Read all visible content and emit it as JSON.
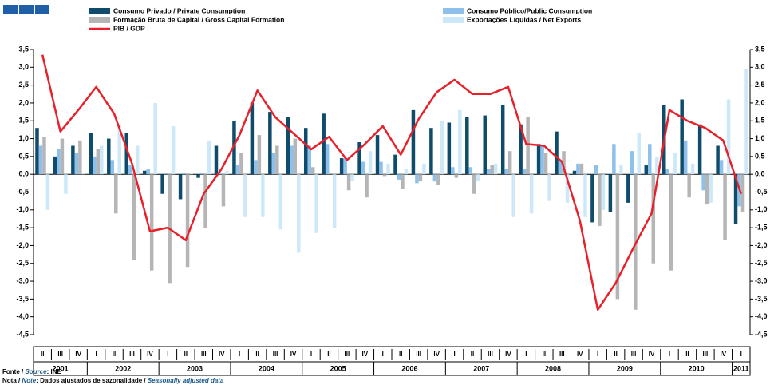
{
  "chart_data": {
    "type": "bar",
    "categories": [
      "II",
      "III",
      "IV",
      "I",
      "II",
      "III",
      "IV",
      "I",
      "II",
      "III",
      "IV",
      "I",
      "II",
      "III",
      "IV",
      "I",
      "II",
      "III",
      "IV",
      "I",
      "II",
      "III",
      "IV",
      "I",
      "II",
      "III",
      "IV",
      "I",
      "II",
      "III",
      "IV",
      "I",
      "II",
      "III",
      "IV",
      "I",
      "II",
      "III",
      "IV",
      "I"
    ],
    "years": [
      "2001",
      "2002",
      "2003",
      "2004",
      "2005",
      "2006",
      "2007",
      "2008",
      "2009",
      "2010",
      "2011"
    ],
    "series": [
      {
        "name": "Consumo Privado / Private Consumption",
        "color": "#0f4c6c",
        "type": "bar",
        "values": [
          1.3,
          0.5,
          0.8,
          1.15,
          1.0,
          1.15,
          0.1,
          -0.55,
          -0.7,
          -0.1,
          0.8,
          1.5,
          2.0,
          1.75,
          1.6,
          1.3,
          1.7,
          0.45,
          0.9,
          1.1,
          0.55,
          1.8,
          1.3,
          1.45,
          1.6,
          1.65,
          1.95,
          1.4,
          0.85,
          1.2,
          0.1,
          -1.35,
          -1.05,
          -0.8,
          0.25,
          1.95,
          2.1,
          1.4,
          0.8,
          -1.4
        ]
      },
      {
        "name": "Consumo Público/Public Consumption",
        "color": "#8dc0ea",
        "type": "bar",
        "values": [
          0.8,
          0.7,
          0.6,
          0.5,
          0.4,
          0.25,
          0.15,
          0.05,
          0.05,
          0.05,
          0.05,
          0.25,
          0.4,
          0.6,
          0.8,
          0.8,
          0.85,
          0.45,
          0.35,
          0.35,
          -0.15,
          -0.25,
          -0.2,
          0.2,
          0.2,
          0.15,
          0.15,
          0.15,
          0.8,
          0.4,
          0.3,
          0.25,
          0.85,
          0.65,
          0.85,
          0.15,
          0.95,
          -0.45,
          0.4,
          -0.9
        ]
      },
      {
        "name": "Formação Bruta de Capital / Gross Capital Formation",
        "color": "#b5b5b5",
        "type": "bar",
        "values": [
          1.05,
          1.0,
          0.95,
          0.7,
          -1.1,
          -2.4,
          -2.7,
          -3.05,
          -2.6,
          -1.5,
          -0.9,
          0.6,
          1.1,
          0.8,
          1.0,
          0.2,
          0.05,
          -0.45,
          -0.65,
          -0.05,
          -0.4,
          -0.2,
          -0.3,
          -0.1,
          -0.55,
          0.25,
          0.65,
          1.6,
          0.6,
          0.65,
          0.3,
          -1.45,
          -3.5,
          -3.8,
          -2.5,
          -2.7,
          -0.65,
          -0.85,
          -1.85,
          -1.05
        ]
      },
      {
        "name": "Exportações Líquidas / Net Exports",
        "color": "#cde9f9",
        "type": "bar",
        "values": [
          -1.0,
          -0.55,
          0.05,
          0.8,
          1.4,
          0.8,
          2.0,
          1.35,
          0.05,
          0.95,
          0.1,
          -1.2,
          -1.2,
          -1.55,
          -2.2,
          -1.65,
          -1.5,
          -0.2,
          0.65,
          0.3,
          0.15,
          0.3,
          1.5,
          1.8,
          -0.2,
          0.3,
          -1.2,
          -1.1,
          -0.75,
          -0.8,
          -1.2,
          -1.0,
          0.25,
          1.15,
          0.5,
          0.6,
          0.3,
          -0.8,
          2.1,
          2.95
        ]
      },
      {
        "name": "PIB / GDP",
        "color": "#e8202a",
        "type": "line",
        "values": [
          3.35,
          1.2,
          1.8,
          2.45,
          1.7,
          0.3,
          -1.6,
          -1.5,
          -1.85,
          -0.55,
          0.15,
          1.1,
          2.35,
          1.6,
          1.15,
          0.7,
          1.05,
          0.4,
          0.85,
          1.35,
          0.55,
          1.55,
          2.3,
          2.65,
          2.25,
          2.25,
          2.45,
          0.85,
          0.8,
          0.35,
          -1.3,
          -3.8,
          -3.05,
          -2.05,
          -1.1,
          1.8,
          1.5,
          1.3,
          0.95,
          -0.55
        ]
      }
    ],
    "ylim": [
      -4.5,
      3.5
    ],
    "yticks": [
      {
        "value": 3.5,
        "label": "3,5"
      },
      {
        "value": 3.0,
        "label": "3,0"
      },
      {
        "value": 2.5,
        "label": "2,5"
      },
      {
        "value": 2.0,
        "label": "2,0"
      },
      {
        "value": 1.5,
        "label": "1,5"
      },
      {
        "value": 1.0,
        "label": "1,0"
      },
      {
        "value": 0.5,
        "label": "0,5"
      },
      {
        "value": 0.0,
        "label": "0,0"
      },
      {
        "value": -0.5,
        "label": "-0,5"
      },
      {
        "value": -1.0,
        "label": "-1,0"
      },
      {
        "value": -1.5,
        "label": "-1,5"
      },
      {
        "value": -2.0,
        "label": "-2,0"
      },
      {
        "value": -2.5,
        "label": "-2,5"
      },
      {
        "value": -3.0,
        "label": "-3,0"
      },
      {
        "value": -3.5,
        "label": "-3,5"
      },
      {
        "value": -4.0,
        "label": "-4,0"
      },
      {
        "value": -4.5,
        "label": "-4,5"
      }
    ]
  },
  "footer": {
    "source_pt": "Fonte / ",
    "source_en": "Source",
    "source": ": INE",
    "note_pt": "Nota / ",
    "note_en": "Note",
    "note": ": Dados ajustados de sazonalidade / ",
    "note_en_text": "Seasonally adjusted data"
  }
}
